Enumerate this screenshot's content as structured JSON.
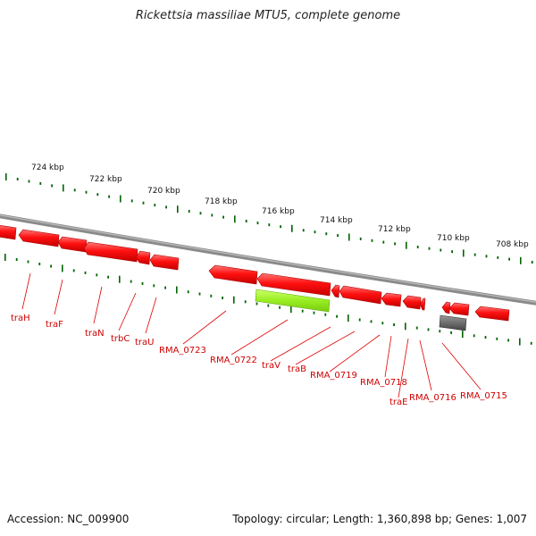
{
  "title": "Rickettsia massiliae MTU5, complete genome",
  "footer": {
    "accession": "Accession: NC_009900",
    "summary": "Topology: circular; Length: 1,360,898 bp; Genes: 1,007"
  },
  "ruler": [
    "724 kbp",
    "722 kbp",
    "720 kbp",
    "718 kbp",
    "716 kbp",
    "714 kbp",
    "712 kbp",
    "710 kbp",
    "708 kbp"
  ],
  "genes": [
    "traH",
    "traF",
    "traN",
    "trbC",
    "traU",
    "RMA_0723",
    "RMA_0722",
    "traV",
    "traB",
    "RMA_0719",
    "RMA_0718",
    "traE",
    "RMA_0716",
    "RMA_0715"
  ],
  "colors": {
    "gene": "#ff0000",
    "highlight": "#99ee22",
    "other": "#555555",
    "backbone": "#888888",
    "ticks": "#006400",
    "label": "#d00000"
  }
}
